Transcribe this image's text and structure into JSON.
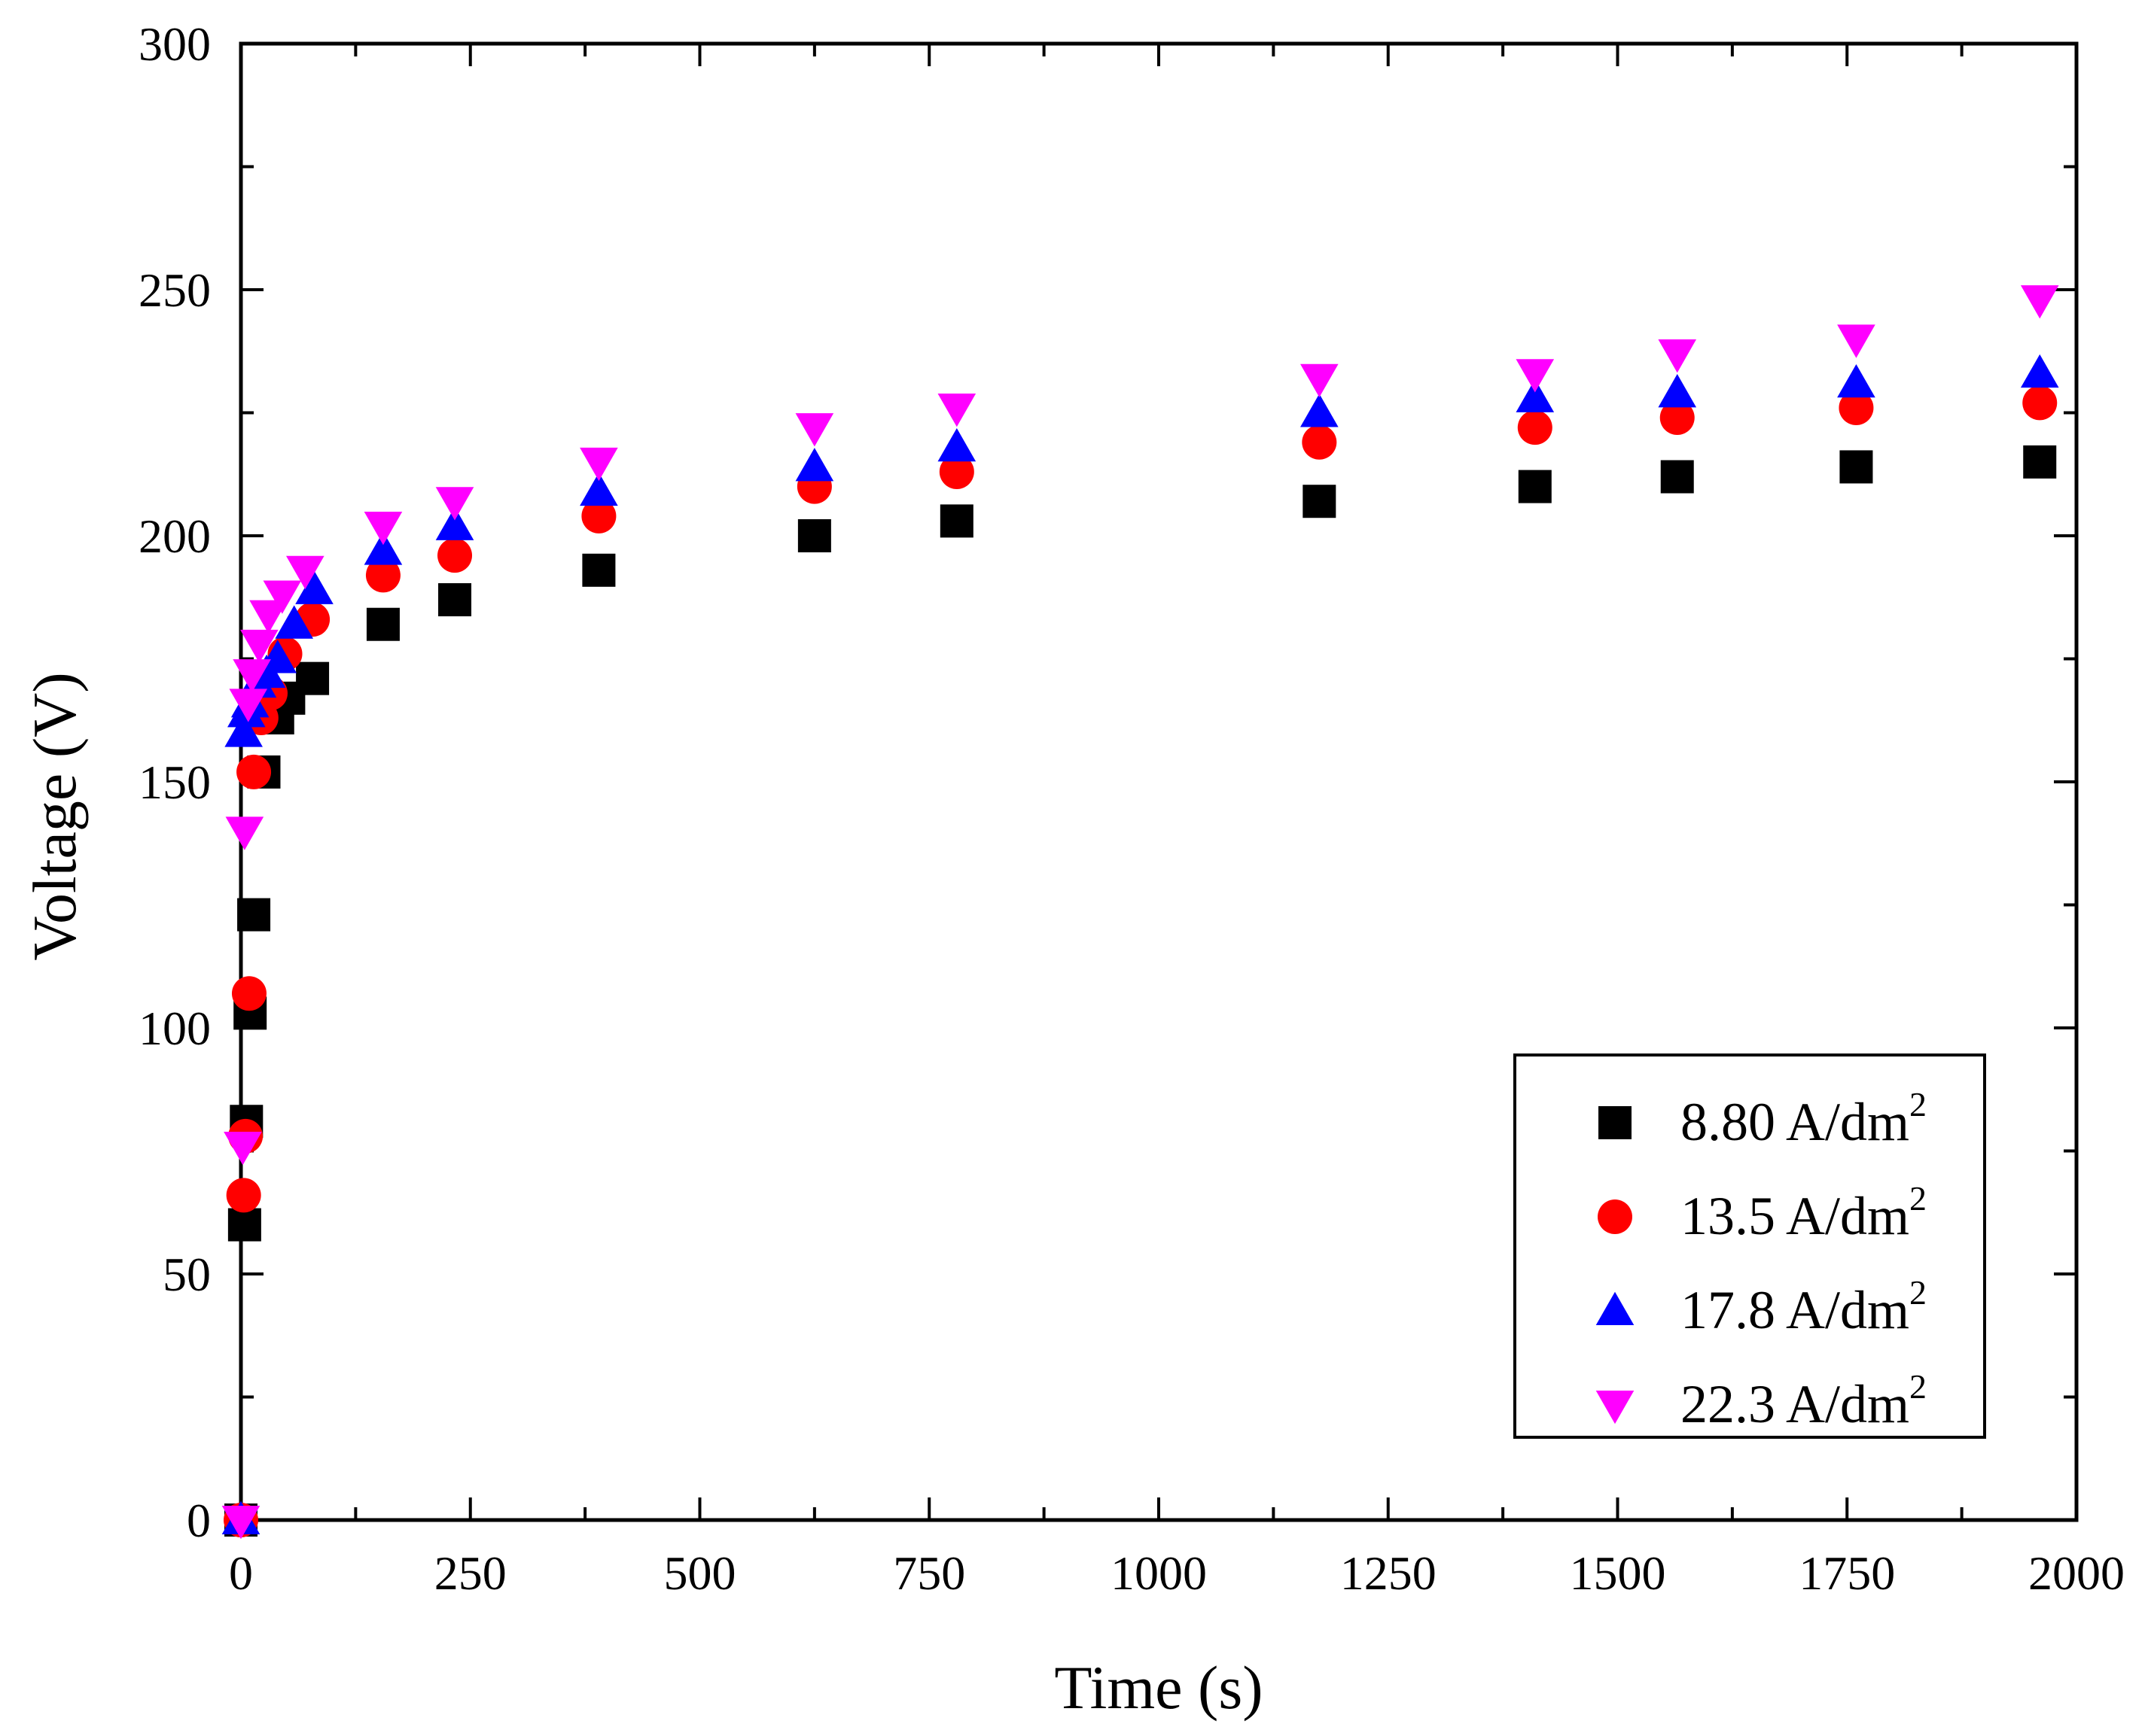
{
  "chart_data": {
    "type": "scatter",
    "xlabel": "Time (s)",
    "ylabel": "Voltage (V)",
    "xlim": [
      0,
      2000
    ],
    "ylim": [
      0,
      300
    ],
    "xticks": [
      "0",
      "250",
      "500",
      "750",
      "1000",
      "1250",
      "1500",
      "1750",
      "2000"
    ],
    "yticks": [
      "0",
      "50",
      "100",
      "150",
      "200",
      "250",
      "300"
    ],
    "xtick_values": [
      0,
      250,
      500,
      750,
      1000,
      1250,
      1500,
      1750,
      2000
    ],
    "ytick_values": [
      0,
      50,
      100,
      150,
      200,
      250,
      300
    ],
    "grid": false,
    "legend_position": "bottom-right",
    "series": [
      {
        "name": "8.80 A/dm",
        "name_sup": "2",
        "marker": "square",
        "color": "#000000",
        "x": [
          0,
          4,
          6,
          10,
          14,
          25,
          40,
          52,
          78,
          155,
          233,
          390,
          625,
          780,
          1175,
          1410,
          1565,
          1760,
          1960
        ],
        "y": [
          0,
          60,
          81,
          103,
          123,
          152,
          163,
          167,
          171,
          182,
          187,
          193,
          200,
          203,
          207,
          210,
          212,
          214,
          215
        ]
      },
      {
        "name": "13.5 A/dm",
        "name_sup": "2",
        "marker": "circle",
        "color": "#ff0000",
        "x": [
          0,
          3,
          5,
          9,
          14,
          22,
          32,
          48,
          78,
          155,
          233,
          390,
          625,
          780,
          1175,
          1410,
          1565,
          1760,
          1960
        ],
        "y": [
          0,
          66,
          78,
          107,
          152,
          163,
          168,
          176,
          183,
          192,
          196,
          204,
          210,
          213,
          219,
          222,
          224,
          226,
          227
        ]
      },
      {
        "name": "17.8 A/dm",
        "name_sup": "2",
        "marker": "triangle-up",
        "color": "#0000ff",
        "x": [
          0,
          3,
          6,
          10,
          18,
          28,
          40,
          58,
          80,
          155,
          233,
          390,
          625,
          780,
          1175,
          1410,
          1565,
          1760,
          1960
        ],
        "y": [
          0,
          160,
          164,
          166,
          170,
          172,
          175,
          182,
          189,
          197,
          202,
          209,
          214,
          218,
          225,
          228,
          229,
          231,
          233
        ]
      },
      {
        "name": "22.3 A/dm",
        "name_sup": "2",
        "marker": "triangle-down",
        "color": "#ff00ff",
        "x": [
          0,
          2,
          4,
          8,
          12,
          20,
          30,
          45,
          70,
          155,
          233,
          390,
          625,
          780,
          1175,
          1410,
          1565,
          1760,
          1960
        ],
        "y": [
          0,
          76,
          140,
          166,
          172,
          178,
          184,
          188,
          193,
          202,
          207,
          215,
          222,
          226,
          232,
          233,
          237,
          240,
          248
        ]
      }
    ]
  }
}
